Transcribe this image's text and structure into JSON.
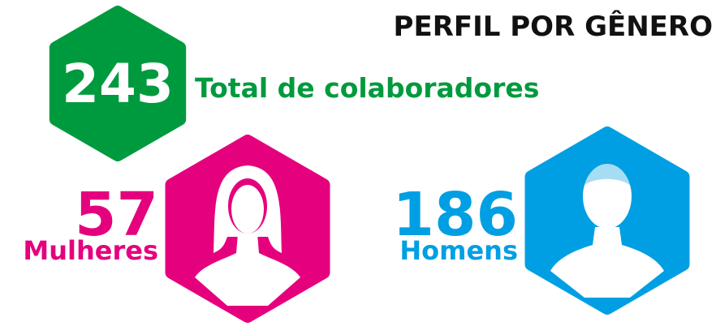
{
  "title": "PERFIL POR GÊNERO",
  "total": {
    "value": 243,
    "label": "Total de colaboradores",
    "color": "#009a3e"
  },
  "groups": [
    {
      "value": 57,
      "label": "Mulheres",
      "color": "#e5007e"
    },
    {
      "value": 186,
      "label": "Homens",
      "color": "#009fe3"
    }
  ]
}
